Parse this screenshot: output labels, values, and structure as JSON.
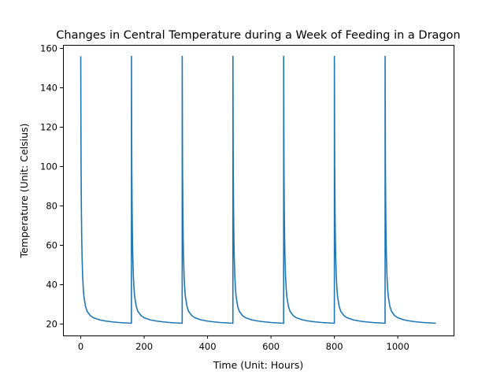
{
  "chart_data": {
    "type": "line",
    "title": "Changes in Central Temperature during a Week of Feeding in a Dragon",
    "xlabel": "Time (Unit: Hours)",
    "ylabel": "Temperature (Unit: Celsius)",
    "xlim": [
      -56,
      1176
    ],
    "ylim": [
      14.2,
      161.8
    ],
    "xticks": [
      0,
      200,
      400,
      600,
      800,
      1000
    ],
    "yticks": [
      20,
      40,
      60,
      80,
      100,
      120,
      140,
      160
    ],
    "grid": false,
    "legend": "none",
    "series_color": "#1f77b4",
    "feeding_times": [
      0,
      160,
      320,
      480,
      640,
      800,
      960
    ],
    "cycle_length_hours": 160,
    "end_time_hours": 1120,
    "peak_temperature": 156,
    "baseline_temperature": 20,
    "series": [
      {
        "name": "",
        "x": [
          0,
          0.5,
          1,
          2,
          3,
          4,
          6,
          8,
          10,
          15,
          20,
          30,
          40,
          60,
          80,
          100,
          120,
          140,
          159.9,
          160,
          160.5,
          161,
          162,
          163,
          164,
          166,
          168,
          170,
          175,
          180,
          190,
          200,
          220,
          240,
          260,
          280,
          300,
          319.9,
          320,
          320.5,
          321,
          322,
          323,
          324,
          326,
          328,
          330,
          335,
          340,
          350,
          360,
          380,
          400,
          420,
          440,
          460,
          479.9,
          480,
          480.5,
          481,
          482,
          483,
          484,
          486,
          488,
          490,
          495,
          500,
          510,
          520,
          540,
          560,
          580,
          600,
          620,
          639.9,
          640,
          640.5,
          641,
          642,
          643,
          644,
          646,
          648,
          650,
          655,
          660,
          670,
          680,
          700,
          720,
          740,
          760,
          780,
          799.9,
          800,
          800.5,
          801,
          802,
          803,
          804,
          806,
          808,
          810,
          815,
          820,
          830,
          840,
          860,
          880,
          900,
          920,
          940,
          959.9,
          960,
          960.5,
          961,
          962,
          963,
          964,
          966,
          968,
          970,
          975,
          980,
          990,
          1000,
          1020,
          1040,
          1060,
          1080,
          1100,
          1120
        ],
        "y": [
          156,
          125,
          100,
          78,
          64,
          55,
          44,
          38,
          34,
          29,
          26.5,
          24.3,
          23.2,
          22.1,
          21.5,
          21.1,
          20.8,
          20.6,
          20.4,
          156,
          125,
          100,
          78,
          64,
          55,
          44,
          38,
          34,
          29,
          26.5,
          24.3,
          23.2,
          22.1,
          21.5,
          21.1,
          20.8,
          20.6,
          20.4,
          156,
          125,
          100,
          78,
          64,
          55,
          44,
          38,
          34,
          29,
          26.5,
          24.3,
          23.2,
          22.1,
          21.5,
          21.1,
          20.8,
          20.6,
          20.4,
          156,
          125,
          100,
          78,
          64,
          55,
          44,
          38,
          34,
          29,
          26.5,
          24.3,
          23.2,
          22.1,
          21.5,
          21.1,
          20.8,
          20.6,
          20.4,
          156,
          125,
          100,
          78,
          64,
          55,
          44,
          38,
          34,
          29,
          26.5,
          24.3,
          23.2,
          22.1,
          21.5,
          21.1,
          20.8,
          20.6,
          20.4,
          156,
          125,
          100,
          78,
          64,
          55,
          44,
          38,
          34,
          29,
          26.5,
          24.3,
          23.2,
          22.1,
          21.5,
          21.1,
          20.8,
          20.6,
          20.4,
          156,
          125,
          100,
          78,
          64,
          55,
          44,
          38,
          34,
          29,
          26.5,
          24.3,
          23.2,
          22.1,
          21.5,
          21.1,
          20.8,
          20.6,
          20.4
        ]
      }
    ]
  }
}
